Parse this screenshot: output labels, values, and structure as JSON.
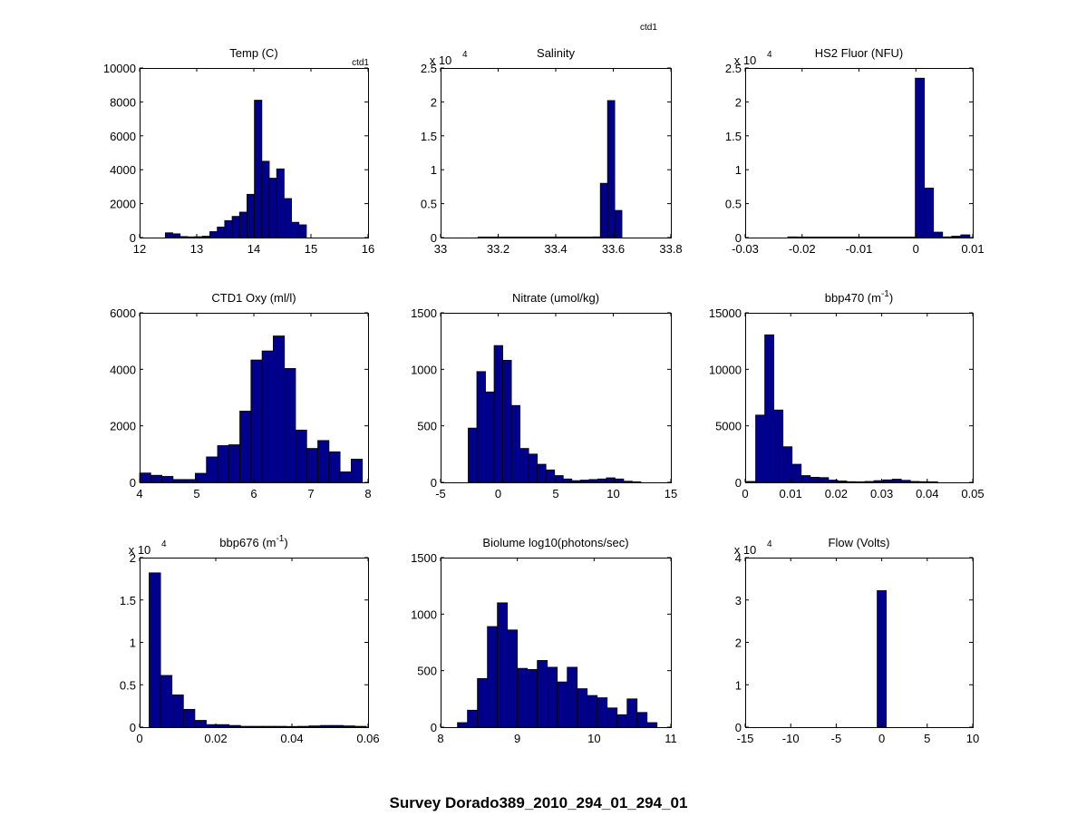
{
  "figure_title": "Survey Dorado389_2010_294_01_294_01",
  "corner_label": "ctd1",
  "colors": {
    "bar_fill": "#00008b",
    "bar_edge": "#000000",
    "axes": "#000000",
    "background": "#ffffff"
  },
  "chart_data": [
    {
      "type": "bar",
      "title": "Temp (C)",
      "inset_label": "ctd1",
      "multiplier": "",
      "xlim": [
        12,
        16
      ],
      "ylim": [
        0,
        10000
      ],
      "xticks": [
        "12",
        "13",
        "14",
        "15",
        "16"
      ],
      "yticks": [
        "0",
        "2000",
        "4000",
        "6000",
        "8000",
        "10000"
      ],
      "bins": [
        {
          "x0": 12.45,
          "x1": 12.58,
          "y": 280
        },
        {
          "x0": 12.58,
          "x1": 12.71,
          "y": 220
        },
        {
          "x0": 12.71,
          "x1": 12.84,
          "y": 60
        },
        {
          "x0": 12.84,
          "x1": 12.97,
          "y": 40
        },
        {
          "x0": 12.97,
          "x1": 13.1,
          "y": 50
        },
        {
          "x0": 13.1,
          "x1": 13.23,
          "y": 80
        },
        {
          "x0": 13.23,
          "x1": 13.36,
          "y": 350
        },
        {
          "x0": 13.36,
          "x1": 13.49,
          "y": 620
        },
        {
          "x0": 13.49,
          "x1": 13.62,
          "y": 1000
        },
        {
          "x0": 13.62,
          "x1": 13.75,
          "y": 1250
        },
        {
          "x0": 13.75,
          "x1": 13.88,
          "y": 1500
        },
        {
          "x0": 13.88,
          "x1": 14.01,
          "y": 2550
        },
        {
          "x0": 14.01,
          "x1": 14.14,
          "y": 8100
        },
        {
          "x0": 14.14,
          "x1": 14.27,
          "y": 4500
        },
        {
          "x0": 14.27,
          "x1": 14.4,
          "y": 3500
        },
        {
          "x0": 14.4,
          "x1": 14.53,
          "y": 4050
        },
        {
          "x0": 14.53,
          "x1": 14.66,
          "y": 2300
        },
        {
          "x0": 14.66,
          "x1": 14.79,
          "y": 900
        },
        {
          "x0": 14.79,
          "x1": 14.92,
          "y": 750
        }
      ]
    },
    {
      "type": "bar",
      "title": "Salinity",
      "inset_label": "",
      "multiplier": "x 10",
      "multiplier_exp": "4",
      "xlim": [
        33,
        33.8
      ],
      "ylim": [
        0,
        2.5
      ],
      "xticks": [
        "33",
        "33.2",
        "33.4",
        "33.6",
        "33.8"
      ],
      "yticks": [
        "0",
        "0.5",
        "1",
        "1.5",
        "2",
        "2.5"
      ],
      "bins": [
        {
          "x0": 33.13,
          "x1": 33.155,
          "y": 0.005
        },
        {
          "x0": 33.155,
          "x1": 33.18,
          "y": 0.005
        },
        {
          "x0": 33.18,
          "x1": 33.205,
          "y": 0.005
        },
        {
          "x0": 33.205,
          "x1": 33.23,
          "y": 0.005
        },
        {
          "x0": 33.23,
          "x1": 33.255,
          "y": 0.005
        },
        {
          "x0": 33.255,
          "x1": 33.28,
          "y": 0.005
        },
        {
          "x0": 33.28,
          "x1": 33.305,
          "y": 0.005
        },
        {
          "x0": 33.305,
          "x1": 33.33,
          "y": 0.005
        },
        {
          "x0": 33.33,
          "x1": 33.355,
          "y": 0.005
        },
        {
          "x0": 33.355,
          "x1": 33.38,
          "y": 0.005
        },
        {
          "x0": 33.38,
          "x1": 33.405,
          "y": 0.005
        },
        {
          "x0": 33.405,
          "x1": 33.43,
          "y": 0.005
        },
        {
          "x0": 33.43,
          "x1": 33.455,
          "y": 0.005
        },
        {
          "x0": 33.455,
          "x1": 33.48,
          "y": 0.005
        },
        {
          "x0": 33.48,
          "x1": 33.505,
          "y": 0.005
        },
        {
          "x0": 33.505,
          "x1": 33.53,
          "y": 0.005
        },
        {
          "x0": 33.53,
          "x1": 33.555,
          "y": 0.01
        },
        {
          "x0": 33.555,
          "x1": 33.58,
          "y": 0.8
        },
        {
          "x0": 33.58,
          "x1": 33.605,
          "y": 2.02
        },
        {
          "x0": 33.605,
          "x1": 33.63,
          "y": 0.4
        }
      ]
    },
    {
      "type": "bar",
      "title": "HS2 Fluor (NFU)",
      "inset_label": "",
      "multiplier": "x 10",
      "multiplier_exp": "4",
      "xlim": [
        -0.03,
        0.01
      ],
      "ylim": [
        0,
        2.5
      ],
      "xticks": [
        "-0.03",
        "-0.02",
        "-0.01",
        "0",
        "0.01"
      ],
      "yticks": [
        "0",
        "0.5",
        "1",
        "1.5",
        "2",
        "2.5"
      ],
      "bins": [
        {
          "x0": -0.0225,
          "x1": -0.0209,
          "y": 0.01
        },
        {
          "x0": -0.0209,
          "x1": -0.0193,
          "y": 0.005
        },
        {
          "x0": -0.0193,
          "x1": -0.0177,
          "y": 0.003
        },
        {
          "x0": -0.0177,
          "x1": -0.0161,
          "y": 0.003
        },
        {
          "x0": -0.0161,
          "x1": -0.0145,
          "y": 0.003
        },
        {
          "x0": -0.0145,
          "x1": -0.0129,
          "y": 0.003
        },
        {
          "x0": -0.0129,
          "x1": -0.0113,
          "y": 0.003
        },
        {
          "x0": -0.0113,
          "x1": -0.0097,
          "y": 0.008
        },
        {
          "x0": -0.0097,
          "x1": -0.0081,
          "y": 0.003
        },
        {
          "x0": -0.0081,
          "x1": -0.0065,
          "y": 0.005
        },
        {
          "x0": -0.0065,
          "x1": -0.0049,
          "y": 0.005
        },
        {
          "x0": -0.0049,
          "x1": -0.0033,
          "y": 0.005
        },
        {
          "x0": -0.0033,
          "x1": -0.0017,
          "y": 0.006
        },
        {
          "x0": -0.0017,
          "x1": -0.0001,
          "y": 0.008
        },
        {
          "x0": -0.0001,
          "x1": 0.0015,
          "y": 2.35
        },
        {
          "x0": 0.0015,
          "x1": 0.0031,
          "y": 0.73
        },
        {
          "x0": 0.0031,
          "x1": 0.0047,
          "y": 0.08
        },
        {
          "x0": 0.0047,
          "x1": 0.0063,
          "y": 0.01
        },
        {
          "x0": 0.0063,
          "x1": 0.0079,
          "y": 0.02
        },
        {
          "x0": 0.0079,
          "x1": 0.0095,
          "y": 0.04
        }
      ]
    },
    {
      "type": "bar",
      "title": "CTD1 Oxy (ml/l)",
      "inset_label": "",
      "multiplier": "",
      "xlim": [
        4,
        8
      ],
      "ylim": [
        0,
        6000
      ],
      "xticks": [
        "4",
        "5",
        "6",
        "7",
        "8"
      ],
      "yticks": [
        "0",
        "2000",
        "4000",
        "6000"
      ],
      "bins": [
        {
          "x0": 4.0,
          "x1": 4.195,
          "y": 330
        },
        {
          "x0": 4.195,
          "x1": 4.39,
          "y": 250
        },
        {
          "x0": 4.39,
          "x1": 4.585,
          "y": 210
        },
        {
          "x0": 4.585,
          "x1": 4.78,
          "y": 100
        },
        {
          "x0": 4.78,
          "x1": 4.975,
          "y": 100
        },
        {
          "x0": 4.975,
          "x1": 5.17,
          "y": 320
        },
        {
          "x0": 5.17,
          "x1": 5.365,
          "y": 900
        },
        {
          "x0": 5.365,
          "x1": 5.56,
          "y": 1300
        },
        {
          "x0": 5.56,
          "x1": 5.755,
          "y": 1330
        },
        {
          "x0": 5.755,
          "x1": 5.95,
          "y": 2520
        },
        {
          "x0": 5.95,
          "x1": 6.145,
          "y": 4330
        },
        {
          "x0": 6.145,
          "x1": 6.34,
          "y": 4650
        },
        {
          "x0": 6.34,
          "x1": 6.535,
          "y": 5180
        },
        {
          "x0": 6.535,
          "x1": 6.73,
          "y": 4030
        },
        {
          "x0": 6.73,
          "x1": 6.925,
          "y": 1850
        },
        {
          "x0": 6.925,
          "x1": 7.12,
          "y": 1200
        },
        {
          "x0": 7.12,
          "x1": 7.315,
          "y": 1480
        },
        {
          "x0": 7.315,
          "x1": 7.51,
          "y": 1080
        },
        {
          "x0": 7.51,
          "x1": 7.705,
          "y": 370
        },
        {
          "x0": 7.705,
          "x1": 7.9,
          "y": 820
        }
      ]
    },
    {
      "type": "bar",
      "title": "Nitrate (umol/kg)",
      "inset_label": "",
      "multiplier": "",
      "xlim": [
        -5,
        15
      ],
      "ylim": [
        0,
        1500
      ],
      "xticks": [
        "-5",
        "0",
        "5",
        "10",
        "15"
      ],
      "yticks": [
        "0",
        "500",
        "1000",
        "1500"
      ],
      "bins": [
        {
          "x0": -2.6,
          "x1": -1.85,
          "y": 480
        },
        {
          "x0": -1.85,
          "x1": -1.1,
          "y": 980
        },
        {
          "x0": -1.1,
          "x1": -0.35,
          "y": 800
        },
        {
          "x0": -0.35,
          "x1": 0.4,
          "y": 1210
        },
        {
          "x0": 0.4,
          "x1": 1.15,
          "y": 1080
        },
        {
          "x0": 1.15,
          "x1": 1.9,
          "y": 680
        },
        {
          "x0": 1.9,
          "x1": 2.65,
          "y": 300
        },
        {
          "x0": 2.65,
          "x1": 3.4,
          "y": 250
        },
        {
          "x0": 3.4,
          "x1": 4.15,
          "y": 160
        },
        {
          "x0": 4.15,
          "x1": 4.9,
          "y": 110
        },
        {
          "x0": 4.9,
          "x1": 5.65,
          "y": 60
        },
        {
          "x0": 5.65,
          "x1": 6.4,
          "y": 30
        },
        {
          "x0": 6.4,
          "x1": 7.15,
          "y": 15
        },
        {
          "x0": 7.15,
          "x1": 7.9,
          "y": 20
        },
        {
          "x0": 7.9,
          "x1": 8.65,
          "y": 25
        },
        {
          "x0": 8.65,
          "x1": 9.4,
          "y": 30
        },
        {
          "x0": 9.4,
          "x1": 10.15,
          "y": 40
        },
        {
          "x0": 10.15,
          "x1": 10.9,
          "y": 30
        },
        {
          "x0": 10.9,
          "x1": 11.65,
          "y": 10
        },
        {
          "x0": 11.65,
          "x1": 12.4,
          "y": 5
        }
      ]
    },
    {
      "type": "bar",
      "title": "bbp470 (m",
      "title_superscript": "-1",
      "title_suffix": ")",
      "inset_label": "",
      "multiplier": "",
      "xlim": [
        0,
        0.05
      ],
      "ylim": [
        0,
        15000
      ],
      "xticks": [
        "0",
        "0.01",
        "0.02",
        "0.03",
        "0.04",
        "0.05"
      ],
      "yticks": [
        "0",
        "5000",
        "10000",
        "15000"
      ],
      "bins": [
        {
          "x0": 0.0003,
          "x1": 0.0023,
          "y": 80
        },
        {
          "x0": 0.0023,
          "x1": 0.0043,
          "y": 5950
        },
        {
          "x0": 0.0043,
          "x1": 0.0063,
          "y": 13050
        },
        {
          "x0": 0.0063,
          "x1": 0.0083,
          "y": 6400
        },
        {
          "x0": 0.0083,
          "x1": 0.0103,
          "y": 3150
        },
        {
          "x0": 0.0103,
          "x1": 0.0123,
          "y": 1600
        },
        {
          "x0": 0.0123,
          "x1": 0.0143,
          "y": 600
        },
        {
          "x0": 0.0143,
          "x1": 0.0163,
          "y": 450
        },
        {
          "x0": 0.0163,
          "x1": 0.0183,
          "y": 420
        },
        {
          "x0": 0.0183,
          "x1": 0.0203,
          "y": 200
        },
        {
          "x0": 0.0203,
          "x1": 0.0223,
          "y": 120
        },
        {
          "x0": 0.0223,
          "x1": 0.0243,
          "y": 60
        },
        {
          "x0": 0.0243,
          "x1": 0.0263,
          "y": 50
        },
        {
          "x0": 0.0263,
          "x1": 0.0283,
          "y": 80
        },
        {
          "x0": 0.0283,
          "x1": 0.0303,
          "y": 150
        },
        {
          "x0": 0.0303,
          "x1": 0.0323,
          "y": 220
        },
        {
          "x0": 0.0323,
          "x1": 0.0343,
          "y": 280
        },
        {
          "x0": 0.0343,
          "x1": 0.0363,
          "y": 180
        },
        {
          "x0": 0.0363,
          "x1": 0.0383,
          "y": 80
        },
        {
          "x0": 0.0383,
          "x1": 0.0403,
          "y": 60
        },
        {
          "x0": 0.0403,
          "x1": 0.0423,
          "y": 30
        }
      ]
    },
    {
      "type": "bar",
      "title": "bbp676 (m",
      "title_superscript": "-1",
      "title_suffix": ")",
      "inset_label": "",
      "multiplier": "x 10",
      "multiplier_exp": "4",
      "xlim": [
        0,
        0.06
      ],
      "ylim": [
        0,
        2
      ],
      "xticks": [
        "0",
        "0.02",
        "0.04",
        "0.06"
      ],
      "yticks": [
        "0",
        "0.5",
        "1",
        "1.5",
        "2"
      ],
      "bins": [
        {
          "x0": 0.0025,
          "x1": 0.0055,
          "y": 1.82
        },
        {
          "x0": 0.0055,
          "x1": 0.0085,
          "y": 0.61
        },
        {
          "x0": 0.0085,
          "x1": 0.0115,
          "y": 0.38
        },
        {
          "x0": 0.0115,
          "x1": 0.0145,
          "y": 0.21
        },
        {
          "x0": 0.0145,
          "x1": 0.0175,
          "y": 0.08
        },
        {
          "x0": 0.0175,
          "x1": 0.0205,
          "y": 0.03
        },
        {
          "x0": 0.0205,
          "x1": 0.0235,
          "y": 0.03
        },
        {
          "x0": 0.0235,
          "x1": 0.0265,
          "y": 0.02
        },
        {
          "x0": 0.0265,
          "x1": 0.0295,
          "y": 0.01
        },
        {
          "x0": 0.0295,
          "x1": 0.0325,
          "y": 0.01
        },
        {
          "x0": 0.0325,
          "x1": 0.0355,
          "y": 0.01
        },
        {
          "x0": 0.0355,
          "x1": 0.0385,
          "y": 0.01
        },
        {
          "x0": 0.0385,
          "x1": 0.0415,
          "y": 0.008
        },
        {
          "x0": 0.0415,
          "x1": 0.0445,
          "y": 0.01
        },
        {
          "x0": 0.0445,
          "x1": 0.0475,
          "y": 0.015
        },
        {
          "x0": 0.0475,
          "x1": 0.0505,
          "y": 0.02
        },
        {
          "x0": 0.0505,
          "x1": 0.0535,
          "y": 0.02
        },
        {
          "x0": 0.0535,
          "x1": 0.0565,
          "y": 0.015
        },
        {
          "x0": 0.0565,
          "x1": 0.0595,
          "y": 0.01
        }
      ]
    },
    {
      "type": "bar",
      "title": "Biolume log10(photons/sec)",
      "inset_label": "",
      "multiplier": "",
      "xlim": [
        8,
        11
      ],
      "ylim": [
        0,
        1500
      ],
      "xticks": [
        "8",
        "9",
        "10",
        "11"
      ],
      "yticks": [
        "0",
        "500",
        "1000",
        "1500"
      ],
      "bins": [
        {
          "x0": 8.22,
          "x1": 8.35,
          "y": 40
        },
        {
          "x0": 8.35,
          "x1": 8.48,
          "y": 150
        },
        {
          "x0": 8.48,
          "x1": 8.61,
          "y": 430
        },
        {
          "x0": 8.61,
          "x1": 8.74,
          "y": 890
        },
        {
          "x0": 8.74,
          "x1": 8.87,
          "y": 1100
        },
        {
          "x0": 8.87,
          "x1": 9.0,
          "y": 860
        },
        {
          "x0": 9.0,
          "x1": 9.13,
          "y": 520
        },
        {
          "x0": 9.13,
          "x1": 9.26,
          "y": 510
        },
        {
          "x0": 9.26,
          "x1": 9.39,
          "y": 590
        },
        {
          "x0": 9.39,
          "x1": 9.52,
          "y": 530
        },
        {
          "x0": 9.52,
          "x1": 9.65,
          "y": 400
        },
        {
          "x0": 9.65,
          "x1": 9.78,
          "y": 530
        },
        {
          "x0": 9.78,
          "x1": 9.91,
          "y": 340
        },
        {
          "x0": 9.91,
          "x1": 10.04,
          "y": 280
        },
        {
          "x0": 10.04,
          "x1": 10.17,
          "y": 260
        },
        {
          "x0": 10.17,
          "x1": 10.3,
          "y": 170
        },
        {
          "x0": 10.3,
          "x1": 10.43,
          "y": 110
        },
        {
          "x0": 10.43,
          "x1": 10.56,
          "y": 250
        },
        {
          "x0": 10.56,
          "x1": 10.69,
          "y": 130
        },
        {
          "x0": 10.69,
          "x1": 10.82,
          "y": 40
        }
      ]
    },
    {
      "type": "bar",
      "title": "Flow (Volts)",
      "inset_label": "",
      "multiplier": "x 10",
      "multiplier_exp": "4",
      "xlim": [
        -15,
        10
      ],
      "ylim": [
        0,
        4
      ],
      "xticks": [
        "-15",
        "-10",
        "-5",
        "0",
        "5",
        "10"
      ],
      "yticks": [
        "0",
        "1",
        "2",
        "3",
        "4"
      ],
      "bins": [
        {
          "x0": -0.5,
          "x1": 0.5,
          "y": 3.22
        }
      ]
    }
  ]
}
